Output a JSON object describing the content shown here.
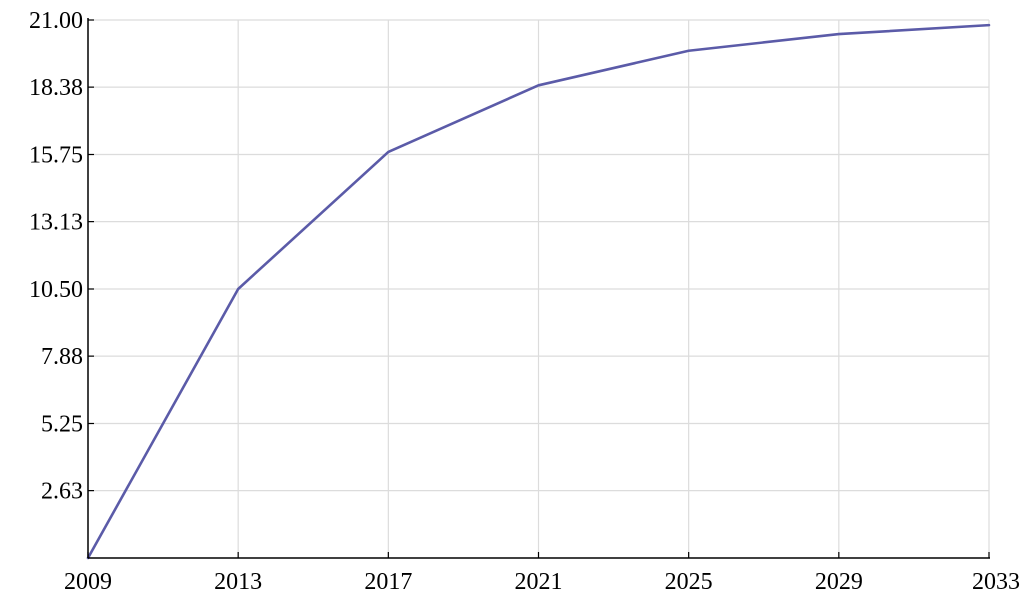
{
  "chart_data": {
    "type": "line",
    "title": "",
    "xlabel": "",
    "ylabel": "",
    "x": [
      2009,
      2013,
      2017,
      2021,
      2025,
      2029,
      2033
    ],
    "series": [
      {
        "values": [
          0.0,
          10.5,
          15.85,
          18.45,
          19.8,
          20.45,
          20.8
        ]
      }
    ],
    "xlim": [
      2009,
      2033
    ],
    "ylim": [
      0,
      21
    ],
    "x_ticks": [
      "2009",
      "2013",
      "2017",
      "2021",
      "2025",
      "2029",
      "2033"
    ],
    "y_ticks": [
      {
        "value": 2.63,
        "label": "2.63"
      },
      {
        "value": 5.25,
        "label": "5.25"
      },
      {
        "value": 7.88,
        "label": "7.88"
      },
      {
        "value": 10.5,
        "label": "10.50"
      },
      {
        "value": 13.13,
        "label": "13.13"
      },
      {
        "value": 15.75,
        "label": "15.75"
      },
      {
        "value": 18.38,
        "label": "18.38"
      },
      {
        "value": 21.0,
        "label": "21.00"
      }
    ],
    "grid": true,
    "colors": {
      "line": "#5b5ba8",
      "grid": "#dcdcdc",
      "axis": "#000000"
    }
  }
}
